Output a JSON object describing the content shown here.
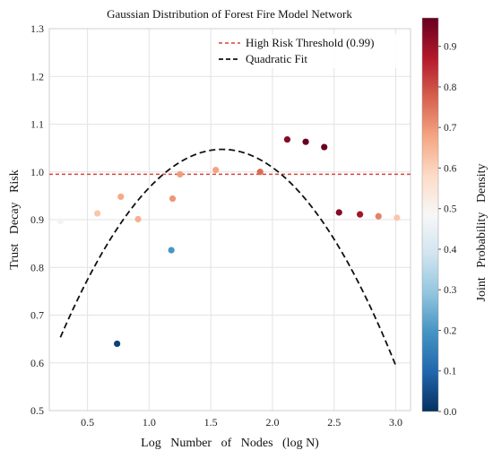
{
  "chart_data": {
    "type": "scatter",
    "title": "Gaussian Distribution of Forest Fire Model Network",
    "xlabel": "Log   Number   of   Nodes   (log N)",
    "ylabel": "Trust   Decay   Risk",
    "xlim": [
      0.19,
      3.12
    ],
    "ylim": [
      0.5,
      1.3
    ],
    "x_ticks": [
      "0.5",
      "1.0",
      "1.5",
      "2.0",
      "2.5",
      "3.0"
    ],
    "x_tick_values": [
      0.5,
      1.0,
      1.5,
      2.0,
      2.5,
      3.0
    ],
    "y_ticks": [
      "0.5",
      "0.6",
      "0.7",
      "0.8",
      "0.9",
      "1.0",
      "1.1",
      "1.2",
      "1.3"
    ],
    "y_tick_values": [
      0.5,
      0.6,
      0.7,
      0.8,
      0.9,
      1.0,
      1.1,
      1.2,
      1.3
    ],
    "grid": true,
    "legend_position": "top-right",
    "colormap": "RdBu_r",
    "colorbar": {
      "label": "Joint   Probability   Density",
      "range": [
        0.0,
        0.97
      ],
      "ticks": [
        "0.0",
        "0.1",
        "0.2",
        "0.3",
        "0.4",
        "0.5",
        "0.6",
        "0.7",
        "0.8",
        "0.9"
      ],
      "tick_values": [
        0.0,
        0.1,
        0.2,
        0.3,
        0.4,
        0.5,
        0.6,
        0.7,
        0.8,
        0.9
      ]
    },
    "threshold": {
      "name": "High Risk Threshold (0.99)",
      "y": 0.995,
      "color": "#d6453d"
    },
    "fit": {
      "name": "Quadratic Fit",
      "x_range": [
        0.28,
        3.0
      ],
      "coefficients": [
        -0.2286,
        0.7281,
        0.4675
      ],
      "color": "#111111"
    },
    "points": [
      {
        "x": 0.28,
        "y": 0.897,
        "density": 0.47
      },
      {
        "x": 0.58,
        "y": 0.913,
        "density": 0.62
      },
      {
        "x": 0.74,
        "y": 0.64,
        "density": 0.03
      },
      {
        "x": 0.77,
        "y": 0.948,
        "density": 0.67
      },
      {
        "x": 0.91,
        "y": 0.901,
        "density": 0.66
      },
      {
        "x": 1.18,
        "y": 0.836,
        "density": 0.2
      },
      {
        "x": 1.19,
        "y": 0.944,
        "density": 0.7
      },
      {
        "x": 1.25,
        "y": 0.995,
        "density": 0.69
      },
      {
        "x": 1.54,
        "y": 1.004,
        "density": 0.68
      },
      {
        "x": 1.9,
        "y": 1.0,
        "density": 0.76
      },
      {
        "x": 2.12,
        "y": 1.068,
        "density": 0.93
      },
      {
        "x": 2.27,
        "y": 1.063,
        "density": 0.97
      },
      {
        "x": 2.42,
        "y": 1.052,
        "density": 0.97
      },
      {
        "x": 2.54,
        "y": 0.915,
        "density": 0.93
      },
      {
        "x": 2.71,
        "y": 0.911,
        "density": 0.89
      },
      {
        "x": 2.86,
        "y": 0.907,
        "density": 0.73
      },
      {
        "x": 3.01,
        "y": 0.904,
        "density": 0.62
      }
    ]
  }
}
